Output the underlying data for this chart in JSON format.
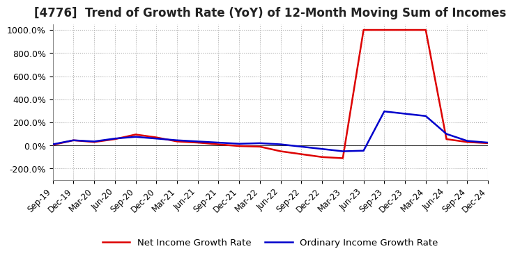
{
  "title": "[4776]  Trend of Growth Rate (YoY) of 12-Month Moving Sum of Incomes",
  "title_fontsize": 12,
  "ylim": [
    -300,
    1050
  ],
  "yticks": [
    -200,
    0,
    200,
    400,
    600,
    800,
    1000
  ],
  "ytick_labels": [
    "-200.0%",
    "0.0%",
    "200.0%",
    "400.0%",
    "600.0%",
    "800.0%",
    "1000.0%"
  ],
  "background_color": "#ffffff",
  "grid_color": "#aaaaaa",
  "ordinary_color": "#0000cc",
  "net_color": "#dd0000",
  "legend_ordinary": "Ordinary Income Growth Rate",
  "legend_net": "Net Income Growth Rate",
  "x_labels": [
    "Sep-19",
    "Dec-19",
    "Mar-20",
    "Jun-20",
    "Sep-20",
    "Dec-20",
    "Mar-21",
    "Jun-21",
    "Sep-21",
    "Dec-21",
    "Mar-22",
    "Jun-22",
    "Sep-22",
    "Dec-22",
    "Mar-23",
    "Jun-23",
    "Sep-23",
    "Dec-23",
    "Mar-24",
    "Jun-24",
    "Sep-24",
    "Dec-24"
  ],
  "ordinary_income_growth": [
    10,
    45,
    35,
    60,
    75,
    60,
    45,
    35,
    25,
    15,
    20,
    10,
    -10,
    -30,
    -50,
    -45,
    295,
    275,
    255,
    100,
    40,
    25
  ],
  "net_income_growth": [
    5,
    45,
    30,
    55,
    95,
    70,
    35,
    25,
    10,
    -5,
    -10,
    -50,
    -75,
    -100,
    -110,
    1000,
    1000,
    1000,
    1000,
    55,
    30,
    20
  ]
}
